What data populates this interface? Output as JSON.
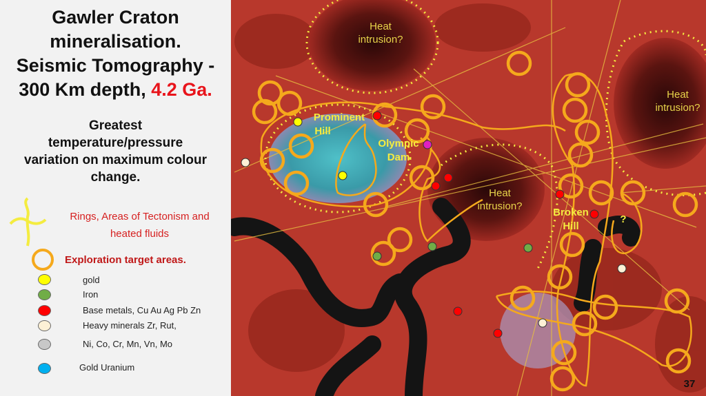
{
  "title": {
    "lines": [
      "Gawler Craton",
      "mineralisation.",
      "Seismic Tomography -",
      "300 Km depth,"
    ],
    "highlight": "4.2 Ga."
  },
  "subtitle": {
    "lines": [
      "Greatest",
      "temperature/pressure",
      "variation on maximum colour",
      "change."
    ]
  },
  "legend": {
    "rings": {
      "lines": [
        "Rings, Areas of Tectonism and",
        "heated fluids"
      ]
    },
    "targets": "Exploration target areas.",
    "items": [
      "gold",
      "Iron",
      "Base metals, Cu Au Ag Pb Zn",
      "Heavy minerals Zr, Rut,",
      "Ni, Co, Cr, Mn, Vn, Mo",
      "Gold Uranium"
    ]
  },
  "map": {
    "labels": {
      "heat_top": [
        "Heat",
        "intrusion?"
      ],
      "heat_right": [
        "Heat",
        "intrusion?"
      ],
      "heat_middle": [
        "Heat",
        "intrusion?"
      ],
      "prominent_hill": [
        "Prominent",
        "Hill"
      ],
      "olympic_dam": [
        "Olympic",
        "Dam"
      ],
      "broken_hill": [
        "Broken",
        "Hill"
      ],
      "unknown": "?"
    }
  },
  "page_number": "37"
}
